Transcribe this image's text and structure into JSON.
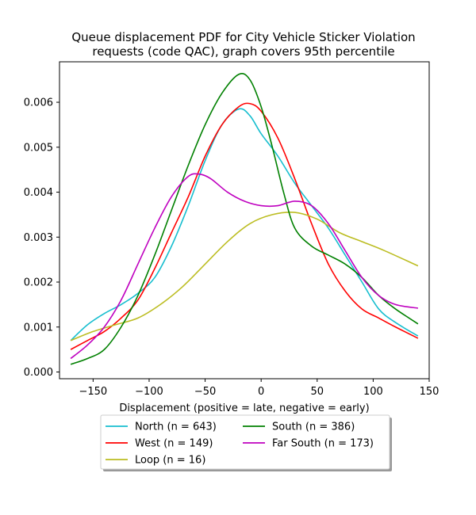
{
  "chart_data": {
    "type": "line",
    "title_lines": [
      "Queue displacement PDF for City Vehicle Sticker Violation",
      "requests (code QAC), graph covers 95th percentile"
    ],
    "xlabel": "Displacement (positive = late, negative = early)",
    "ylabel": "",
    "xlim": [
      -180,
      150
    ],
    "ylim": [
      -0.00015,
      0.0069
    ],
    "xticks": [
      -150,
      -100,
      -50,
      0,
      50,
      100,
      150
    ],
    "xtick_labels": [
      "−150",
      "−100",
      "−50",
      "0",
      "50",
      "100",
      "150"
    ],
    "yticks": [
      0.0,
      0.001,
      0.002,
      0.003,
      0.004,
      0.005,
      0.006
    ],
    "ytick_labels": [
      "0.000",
      "0.001",
      "0.002",
      "0.003",
      "0.004",
      "0.005",
      "0.006"
    ],
    "grid": false,
    "legend_position": "below",
    "legend_columns": 2,
    "series": [
      {
        "name": "North (n = 643)",
        "color": "#17becf",
        "x": [
          -170,
          -155,
          -140,
          -125,
          -110,
          -95,
          -80,
          -65,
          -50,
          -35,
          -20,
          -10,
          0,
          15,
          30,
          45,
          60,
          75,
          90,
          105,
          120,
          140
        ],
        "y": [
          0.0007,
          0.00105,
          0.0013,
          0.0015,
          0.00175,
          0.0021,
          0.0028,
          0.0037,
          0.0047,
          0.0055,
          0.00585,
          0.0057,
          0.0053,
          0.0048,
          0.0042,
          0.0037,
          0.0032,
          0.0026,
          0.002,
          0.0014,
          0.0011,
          0.0008
        ]
      },
      {
        "name": "West (n = 149)",
        "color": "#ff0000",
        "x": [
          -170,
          -155,
          -140,
          -125,
          -110,
          -95,
          -80,
          -65,
          -50,
          -35,
          -20,
          -10,
          0,
          15,
          30,
          45,
          60,
          75,
          90,
          105,
          120,
          140
        ],
        "y": [
          0.0005,
          0.0007,
          0.0009,
          0.0012,
          0.0016,
          0.0023,
          0.0031,
          0.0039,
          0.0048,
          0.0055,
          0.0059,
          0.00597,
          0.0058,
          0.0052,
          0.0043,
          0.0033,
          0.0024,
          0.0018,
          0.0014,
          0.0012,
          0.001,
          0.00075
        ]
      },
      {
        "name": "Loop (n = 16)",
        "color": "#bcbd22",
        "x": [
          -170,
          -150,
          -130,
          -110,
          -90,
          -70,
          -50,
          -30,
          -10,
          10,
          30,
          50,
          70,
          90,
          110,
          140
        ],
        "y": [
          0.0007,
          0.0009,
          0.00105,
          0.0012,
          0.0015,
          0.0019,
          0.0024,
          0.0029,
          0.0033,
          0.0035,
          0.00355,
          0.0034,
          0.0031,
          0.0029,
          0.0027,
          0.00236
        ]
      },
      {
        "name": "South (n = 386)",
        "color": "#008000",
        "x": [
          -170,
          -155,
          -140,
          -125,
          -110,
          -95,
          -80,
          -65,
          -50,
          -35,
          -20,
          -10,
          0,
          10,
          20,
          30,
          45,
          60,
          75,
          90,
          105,
          120,
          140
        ],
        "y": [
          0.00017,
          0.0003,
          0.0005,
          0.001,
          0.0017,
          0.0026,
          0.0036,
          0.0046,
          0.0055,
          0.0062,
          0.00662,
          0.0065,
          0.0059,
          0.005,
          0.004,
          0.0032,
          0.0028,
          0.0026,
          0.0024,
          0.0021,
          0.0017,
          0.0014,
          0.00107
        ]
      },
      {
        "name": "Far South (n = 173)",
        "color": "#bf00bf",
        "x": [
          -170,
          -155,
          -140,
          -125,
          -110,
          -95,
          -80,
          -65,
          -55,
          -45,
          -30,
          -15,
          0,
          15,
          30,
          45,
          60,
          75,
          90,
          105,
          120,
          140
        ],
        "y": [
          0.0003,
          0.0006,
          0.001,
          0.0016,
          0.0024,
          0.0032,
          0.0039,
          0.00435,
          0.0044,
          0.0043,
          0.004,
          0.0038,
          0.0037,
          0.0037,
          0.0038,
          0.0037,
          0.0033,
          0.0027,
          0.0021,
          0.0017,
          0.0015,
          0.00142
        ]
      }
    ]
  }
}
